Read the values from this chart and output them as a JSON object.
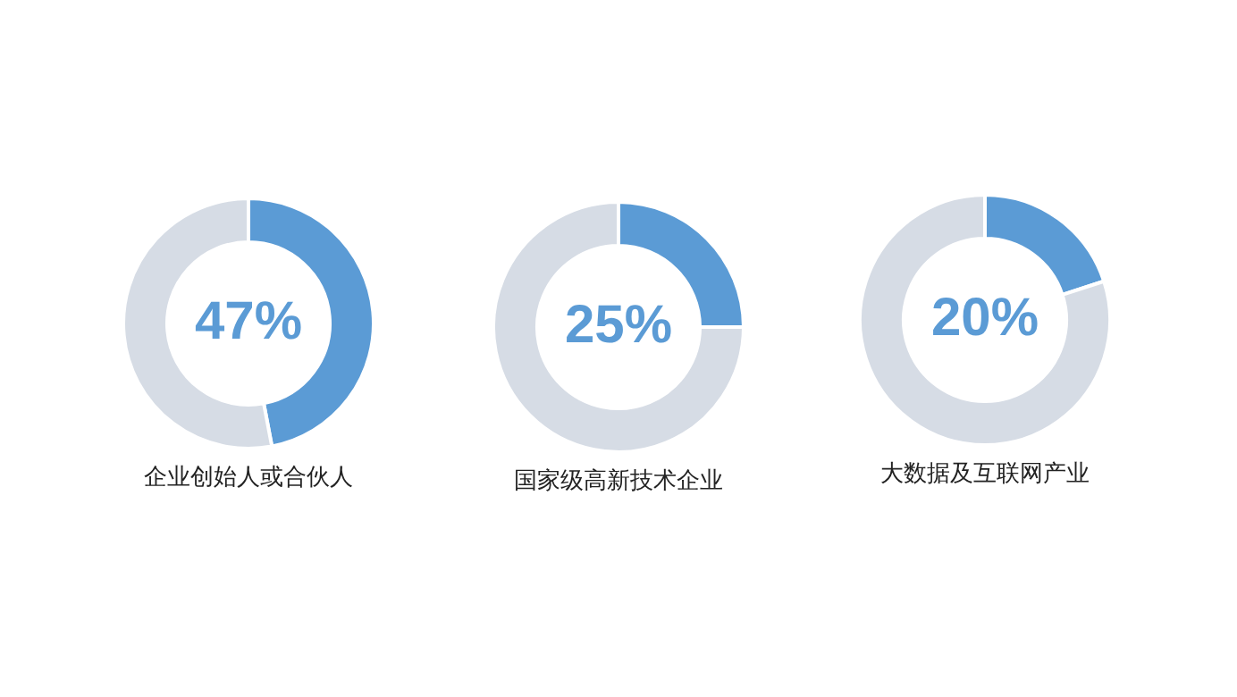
{
  "chart_data": [
    {
      "type": "donut",
      "title": "企业创始人或合伙人",
      "categories": [
        null,
        null
      ],
      "values": [
        47,
        53
      ],
      "colors": [
        "#5b9bd5",
        "#d6dce5"
      ],
      "value_labels": [
        "47%",
        null
      ]
    },
    {
      "type": "donut",
      "title": "国家级高新技术企业",
      "categories": [
        null,
        null
      ],
      "values": [
        25,
        75
      ],
      "colors": [
        "#5b9bd5",
        "#d6dce5"
      ],
      "value_labels": [
        "25%",
        null
      ]
    },
    {
      "type": "donut",
      "title": "大数据及互联网产业",
      "categories": [
        null,
        null
      ],
      "values": [
        20,
        80
      ],
      "colors": [
        "#5b9bd5",
        "#d6dce5"
      ],
      "value_labels": [
        "20%",
        null
      ]
    }
  ]
}
